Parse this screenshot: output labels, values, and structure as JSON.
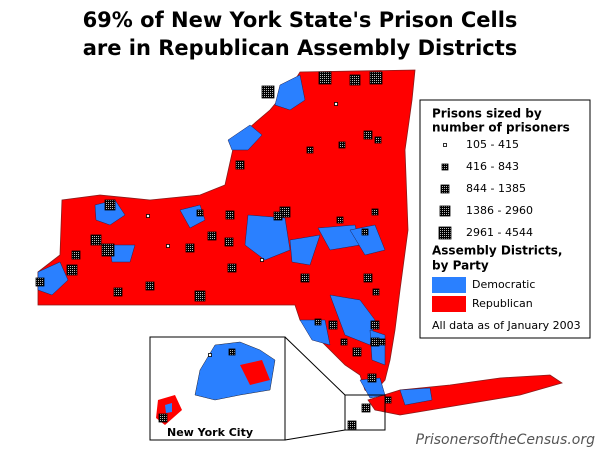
{
  "title_lines": [
    "69% of New York State's Prison Cells",
    "are in Republican Assembly Districts"
  ],
  "legend": {
    "prisons_heading": [
      "Prisons sized by",
      "number of prisoners"
    ],
    "prison_sizes": [
      "105 - 415",
      "416 - 843",
      "844 - 1385",
      "1386 - 2960",
      "2961 - 4544"
    ],
    "districts_heading": [
      "Assembly Districts,",
      "by Party"
    ],
    "parties": [
      "Democratic",
      "Republican"
    ],
    "note": "All data as of January 2003"
  },
  "inset": {
    "label": "New York City"
  },
  "credit": "PrisonersoftheCensus.org"
}
